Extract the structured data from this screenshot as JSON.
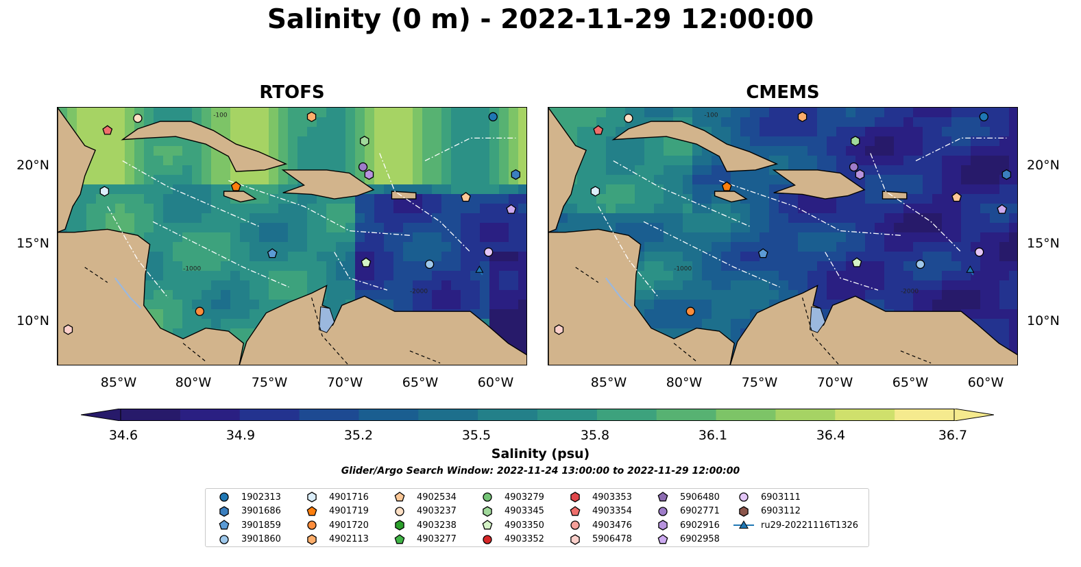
{
  "title": "Salinity (0 m) - 2022-11-29 12:00:00",
  "panels": [
    {
      "title": "RTOFS"
    },
    {
      "title": "CMEMS"
    }
  ],
  "axes": {
    "lat_labels": [
      "20°N",
      "15°N",
      "10°N"
    ],
    "lon_labels": [
      "85°W",
      "80°W",
      "75°W",
      "70°W",
      "65°W",
      "60°W"
    ]
  },
  "colorbar": {
    "label": "Salinity (psu)",
    "ticks": [
      "34.6",
      "34.9",
      "35.2",
      "35.5",
      "35.8",
      "36.1",
      "36.4",
      "36.7"
    ],
    "colors": [
      "#271a6a",
      "#2a1f82",
      "#23338f",
      "#1d4a92",
      "#1a5e90",
      "#1d6f8c",
      "#238089",
      "#2c9186",
      "#3da27d",
      "#57b272",
      "#7dc467",
      "#a6d364",
      "#cfe06c",
      "#f5ea8e"
    ]
  },
  "search_window": "Glider/Argo Search Window: 2022-11-24 13:00:00 to 2022-11-29 12:00:00",
  "contour_labels": [
    "-100",
    "-1000",
    "-2000"
  ],
  "colors": {
    "land": "#d2b48c",
    "lake": "#9bb8de",
    "ocean_low": "#271a6a",
    "ocean_high": "#f5ea8e"
  },
  "legend": [
    {
      "label": "1902313",
      "marker": "circle",
      "color": "#1f77b4"
    },
    {
      "label": "3901686",
      "marker": "hexagon",
      "color": "#3b7fbf"
    },
    {
      "label": "3901859",
      "marker": "pentagon",
      "color": "#5b9bd5"
    },
    {
      "label": "3901860",
      "marker": "circle",
      "color": "#9ec8eb"
    },
    {
      "label": "4901716",
      "marker": "hexagon",
      "color": "#dbeefa"
    },
    {
      "label": "4901719",
      "marker": "pentagon",
      "color": "#ff7f0e"
    },
    {
      "label": "4901720",
      "marker": "circle",
      "color": "#fd8d3c"
    },
    {
      "label": "4902113",
      "marker": "hexagon",
      "color": "#fdae6b"
    },
    {
      "label": "4902534",
      "marker": "pentagon",
      "color": "#fdc897"
    },
    {
      "label": "4903237",
      "marker": "circle",
      "color": "#fde0c5"
    },
    {
      "label": "4903238",
      "marker": "hexagon",
      "color": "#2ca02c"
    },
    {
      "label": "4903277",
      "marker": "pentagon",
      "color": "#41b547"
    },
    {
      "label": "4903279",
      "marker": "circle",
      "color": "#74c476"
    },
    {
      "label": "4903345",
      "marker": "hexagon",
      "color": "#a1d99b"
    },
    {
      "label": "4903350",
      "marker": "pentagon",
      "color": "#d4f3c6"
    },
    {
      "label": "4903352",
      "marker": "circle",
      "color": "#d62728"
    },
    {
      "label": "4903353",
      "marker": "hexagon",
      "color": "#e0464a"
    },
    {
      "label": "4903354",
      "marker": "pentagon",
      "color": "#ef6f6c"
    },
    {
      "label": "4903476",
      "marker": "circle",
      "color": "#f4a09a"
    },
    {
      "label": "5906478",
      "marker": "hexagon",
      "color": "#fbd0cb"
    },
    {
      "label": "5906480",
      "marker": "pentagon",
      "color": "#8c6bb1"
    },
    {
      "label": "6902771",
      "marker": "circle",
      "color": "#9e7cc9"
    },
    {
      "label": "6902916",
      "marker": "hexagon",
      "color": "#b793de"
    },
    {
      "label": "6902958",
      "marker": "pentagon",
      "color": "#ccaaf0"
    },
    {
      "label": "6903111",
      "marker": "circle",
      "color": "#e3c6f7"
    },
    {
      "label": "6903112",
      "marker": "hexagon",
      "color": "#8c564b"
    },
    {
      "label": "ru29-20221116T1326",
      "marker": "line-triangle",
      "color": "#1f77b4"
    }
  ],
  "floats": [
    {
      "lon": -84.0,
      "lat": 23.3,
      "color": "#fde0c5",
      "marker": "circle"
    },
    {
      "lon": -86.0,
      "lat": 22.5,
      "color": "#ef6f6c",
      "marker": "pentagon"
    },
    {
      "lon": -72.5,
      "lat": 23.4,
      "color": "#fdae6b",
      "marker": "hexagon"
    },
    {
      "lon": -60.5,
      "lat": 23.4,
      "color": "#1f77b4",
      "marker": "circle"
    },
    {
      "lon": -69.0,
      "lat": 21.8,
      "color": "#a1d99b",
      "marker": "hexagon"
    },
    {
      "lon": -69.1,
      "lat": 20.1,
      "color": "#9e7cc9",
      "marker": "circle"
    },
    {
      "lon": -68.7,
      "lat": 19.6,
      "color": "#b793de",
      "marker": "hexagon"
    },
    {
      "lon": -59.0,
      "lat": 19.6,
      "color": "#3b7fbf",
      "marker": "hexagon"
    },
    {
      "lon": -86.2,
      "lat": 18.5,
      "color": "#dbeefa",
      "marker": "hexagon"
    },
    {
      "lon": -77.5,
      "lat": 18.8,
      "color": "#ff7f0e",
      "marker": "pentagon"
    },
    {
      "lon": -62.3,
      "lat": 18.1,
      "color": "#fdc897",
      "marker": "pentagon"
    },
    {
      "lon": -59.3,
      "lat": 17.3,
      "color": "#ccaaf0",
      "marker": "pentagon"
    },
    {
      "lon": -75.1,
      "lat": 14.4,
      "color": "#5b9bd5",
      "marker": "pentagon"
    },
    {
      "lon": -60.8,
      "lat": 14.5,
      "color": "#e3c6f7",
      "marker": "circle"
    },
    {
      "lon": -68.9,
      "lat": 13.8,
      "color": "#d4f3c6",
      "marker": "pentagon"
    },
    {
      "lon": -64.7,
      "lat": 13.7,
      "color": "#9ec8eb",
      "marker": "circle"
    },
    {
      "lon": -79.9,
      "lat": 10.6,
      "color": "#fd8d3c",
      "marker": "circle"
    },
    {
      "lon": -88.6,
      "lat": 9.4,
      "color": "#fbd0cb",
      "marker": "hexagon"
    }
  ],
  "glider_track": [
    {
      "lon": -61.2,
      "lat": 13.0
    },
    {
      "lon": -61.4,
      "lat": 13.3
    }
  ]
}
